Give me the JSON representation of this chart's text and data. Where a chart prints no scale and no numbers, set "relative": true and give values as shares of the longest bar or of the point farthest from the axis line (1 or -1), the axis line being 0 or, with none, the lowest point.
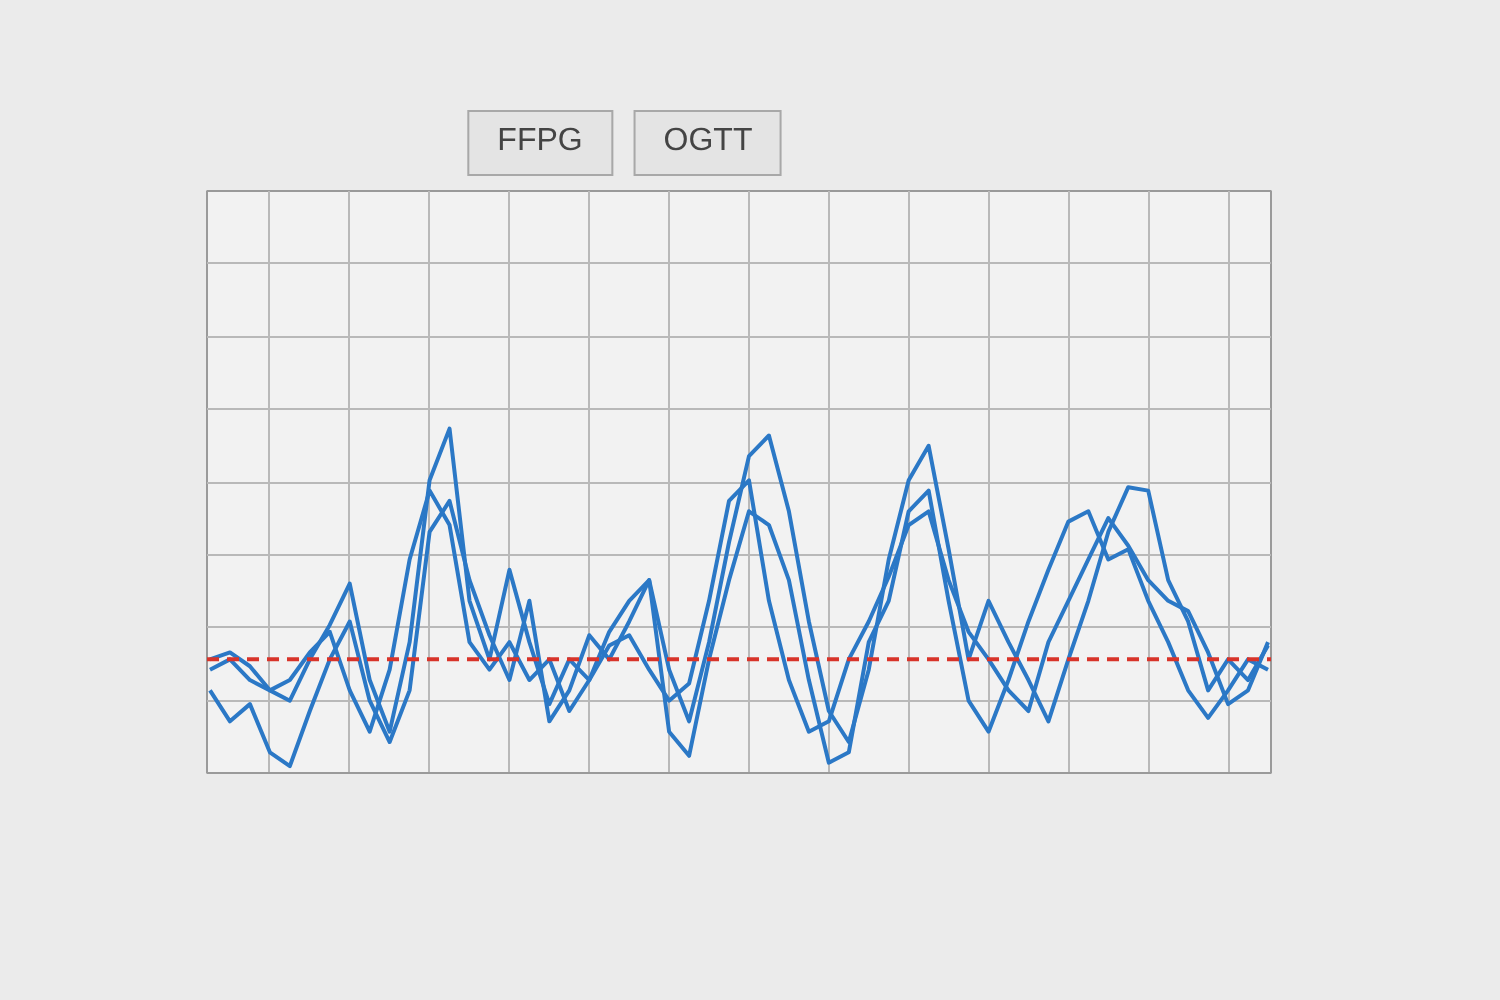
{
  "chart_data": {
    "type": "line",
    "relative": true,
    "grid": true,
    "annotations": [
      "FFPG",
      "OGTT"
    ],
    "categories": [
      null,
      null,
      null,
      null,
      null,
      null,
      null,
      null,
      null,
      null,
      null,
      null,
      null,
      null,
      null,
      null,
      null,
      null,
      null,
      null,
      null,
      null,
      null,
      null,
      null,
      null,
      null,
      null,
      null,
      null,
      null,
      null,
      null,
      null,
      null,
      null,
      null,
      null,
      null,
      null,
      null,
      null,
      null,
      null,
      null,
      null,
      null,
      null,
      null,
      null,
      null,
      null,
      null,
      null
    ],
    "series": [
      {
        "color": "#2b78c6",
        "values": [
          0.33,
          0.35,
          0.31,
          0.24,
          0.21,
          0.33,
          0.43,
          0.55,
          0.27,
          0.12,
          0.38,
          0.85,
          1.0,
          0.5,
          0.33,
          0.59,
          0.38,
          0.2,
          0.33,
          0.27,
          0.41,
          0.5,
          0.56,
          0.3,
          0.15,
          0.38,
          0.67,
          0.92,
          0.98,
          0.76,
          0.44,
          0.18,
          0.09,
          0.3,
          0.62,
          0.85,
          0.95,
          0.65,
          0.33,
          0.5,
          0.38,
          0.27,
          0.15,
          0.33,
          0.5,
          0.7,
          0.83,
          0.82,
          0.56,
          0.44,
          0.24,
          0.33,
          0.27,
          0.37
        ]
      },
      {
        "color": "#2b78c6",
        "values": [
          0.24,
          0.15,
          0.2,
          0.06,
          0.02,
          0.18,
          0.33,
          0.44,
          0.21,
          0.09,
          0.24,
          0.7,
          0.79,
          0.56,
          0.4,
          0.27,
          0.5,
          0.15,
          0.24,
          0.4,
          0.33,
          0.44,
          0.56,
          0.12,
          0.05,
          0.33,
          0.56,
          0.76,
          0.72,
          0.56,
          0.27,
          0.03,
          0.06,
          0.38,
          0.5,
          0.76,
          0.82,
          0.5,
          0.21,
          0.12,
          0.27,
          0.44,
          0.59,
          0.73,
          0.76,
          0.62,
          0.65,
          0.5,
          0.38,
          0.24,
          0.16,
          0.24,
          0.33,
          0.3
        ]
      },
      {
        "color": "#2b78c6",
        "values": [
          0.3,
          0.33,
          0.27,
          0.24,
          0.27,
          0.35,
          0.41,
          0.24,
          0.12,
          0.3,
          0.62,
          0.82,
          0.72,
          0.38,
          0.3,
          0.38,
          0.27,
          0.33,
          0.18,
          0.27,
          0.37,
          0.4,
          0.3,
          0.21,
          0.26,
          0.5,
          0.79,
          0.85,
          0.5,
          0.27,
          0.12,
          0.15,
          0.33,
          0.44,
          0.57,
          0.72,
          0.76,
          0.56,
          0.41,
          0.33,
          0.24,
          0.18,
          0.38,
          0.5,
          0.62,
          0.74,
          0.66,
          0.56,
          0.5,
          0.47,
          0.35,
          0.2,
          0.24,
          0.38
        ]
      }
    ],
    "ref_lines": [
      {
        "axis": "y",
        "value": 0.33,
        "color": "#d8342a",
        "line_style": "dashed"
      }
    ]
  }
}
